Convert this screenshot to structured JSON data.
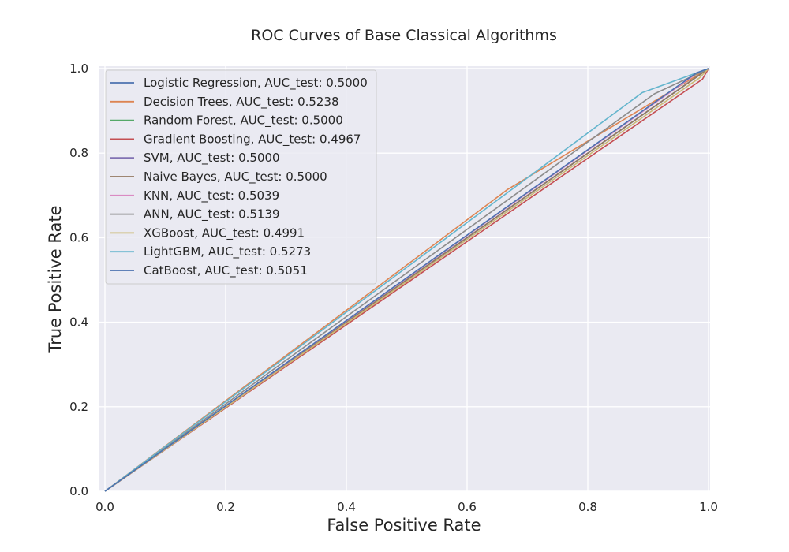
{
  "chart_data": {
    "type": "line",
    "title": "ROC Curves of Base Classical Algorithms",
    "xlabel": "False Positive Rate",
    "ylabel": "True Positive Rate",
    "xlim": [
      0.0,
      1.0
    ],
    "ylim": [
      0.0,
      1.0
    ],
    "xticks": [
      "0.0",
      "0.2",
      "0.4",
      "0.6",
      "0.8",
      "1.0"
    ],
    "yticks": [
      "0.0",
      "0.2",
      "0.4",
      "0.6",
      "0.8",
      "1.0"
    ],
    "grid": true,
    "legend_position": "top-left",
    "series": [
      {
        "name": "Logistic Regression, AUC_test: 0.5000",
        "color": "#4C72B0",
        "points": [
          [
            0.0,
            0.0
          ],
          [
            1.0,
            1.0
          ]
        ]
      },
      {
        "name": "Decision Trees, AUC_test: 0.5238",
        "color": "#DD8452",
        "points": [
          [
            0.0,
            0.0
          ],
          [
            0.667,
            0.714
          ],
          [
            1.0,
            1.0
          ]
        ]
      },
      {
        "name": "Random Forest, AUC_test: 0.5000",
        "color": "#55A868",
        "points": [
          [
            0.0,
            0.0
          ],
          [
            1.0,
            1.0
          ]
        ]
      },
      {
        "name": "Gradient Boosting, AUC_test: 0.4967",
        "color": "#C44E52",
        "points": [
          [
            0.0,
            0.0
          ],
          [
            0.99,
            0.975
          ],
          [
            1.0,
            1.0
          ]
        ]
      },
      {
        "name": "SVM, AUC_test: 0.5000",
        "color": "#8172B3",
        "points": [
          [
            0.0,
            0.0
          ],
          [
            1.0,
            1.0
          ]
        ]
      },
      {
        "name": "Naive Bayes, AUC_test: 0.5000",
        "color": "#937860",
        "points": [
          [
            0.0,
            0.0
          ],
          [
            1.0,
            1.0
          ]
        ]
      },
      {
        "name": "KNN, AUC_test: 0.5039",
        "color": "#DA8BC3",
        "points": [
          [
            0.0,
            0.0
          ],
          [
            0.98,
            0.988
          ],
          [
            1.0,
            1.0
          ]
        ]
      },
      {
        "name": "ANN, AUC_test: 0.5139",
        "color": "#8C8C8C",
        "points": [
          [
            0.0,
            0.0
          ],
          [
            0.91,
            0.94
          ],
          [
            1.0,
            1.0
          ]
        ]
      },
      {
        "name": "XGBoost, AUC_test: 0.4991",
        "color": "#CCB974",
        "points": [
          [
            0.0,
            0.0
          ],
          [
            0.985,
            0.978
          ],
          [
            1.0,
            1.0
          ]
        ]
      },
      {
        "name": "LightGBM, AUC_test: 0.5273",
        "color": "#64B5CD",
        "points": [
          [
            0.0,
            0.0
          ],
          [
            0.89,
            0.943
          ],
          [
            1.0,
            1.0
          ]
        ]
      },
      {
        "name": "CatBoost, AUC_test: 0.5051",
        "color": "#4C72B0",
        "points": [
          [
            0.0,
            0.0
          ],
          [
            0.98,
            0.99
          ],
          [
            1.0,
            1.0
          ]
        ]
      }
    ]
  }
}
